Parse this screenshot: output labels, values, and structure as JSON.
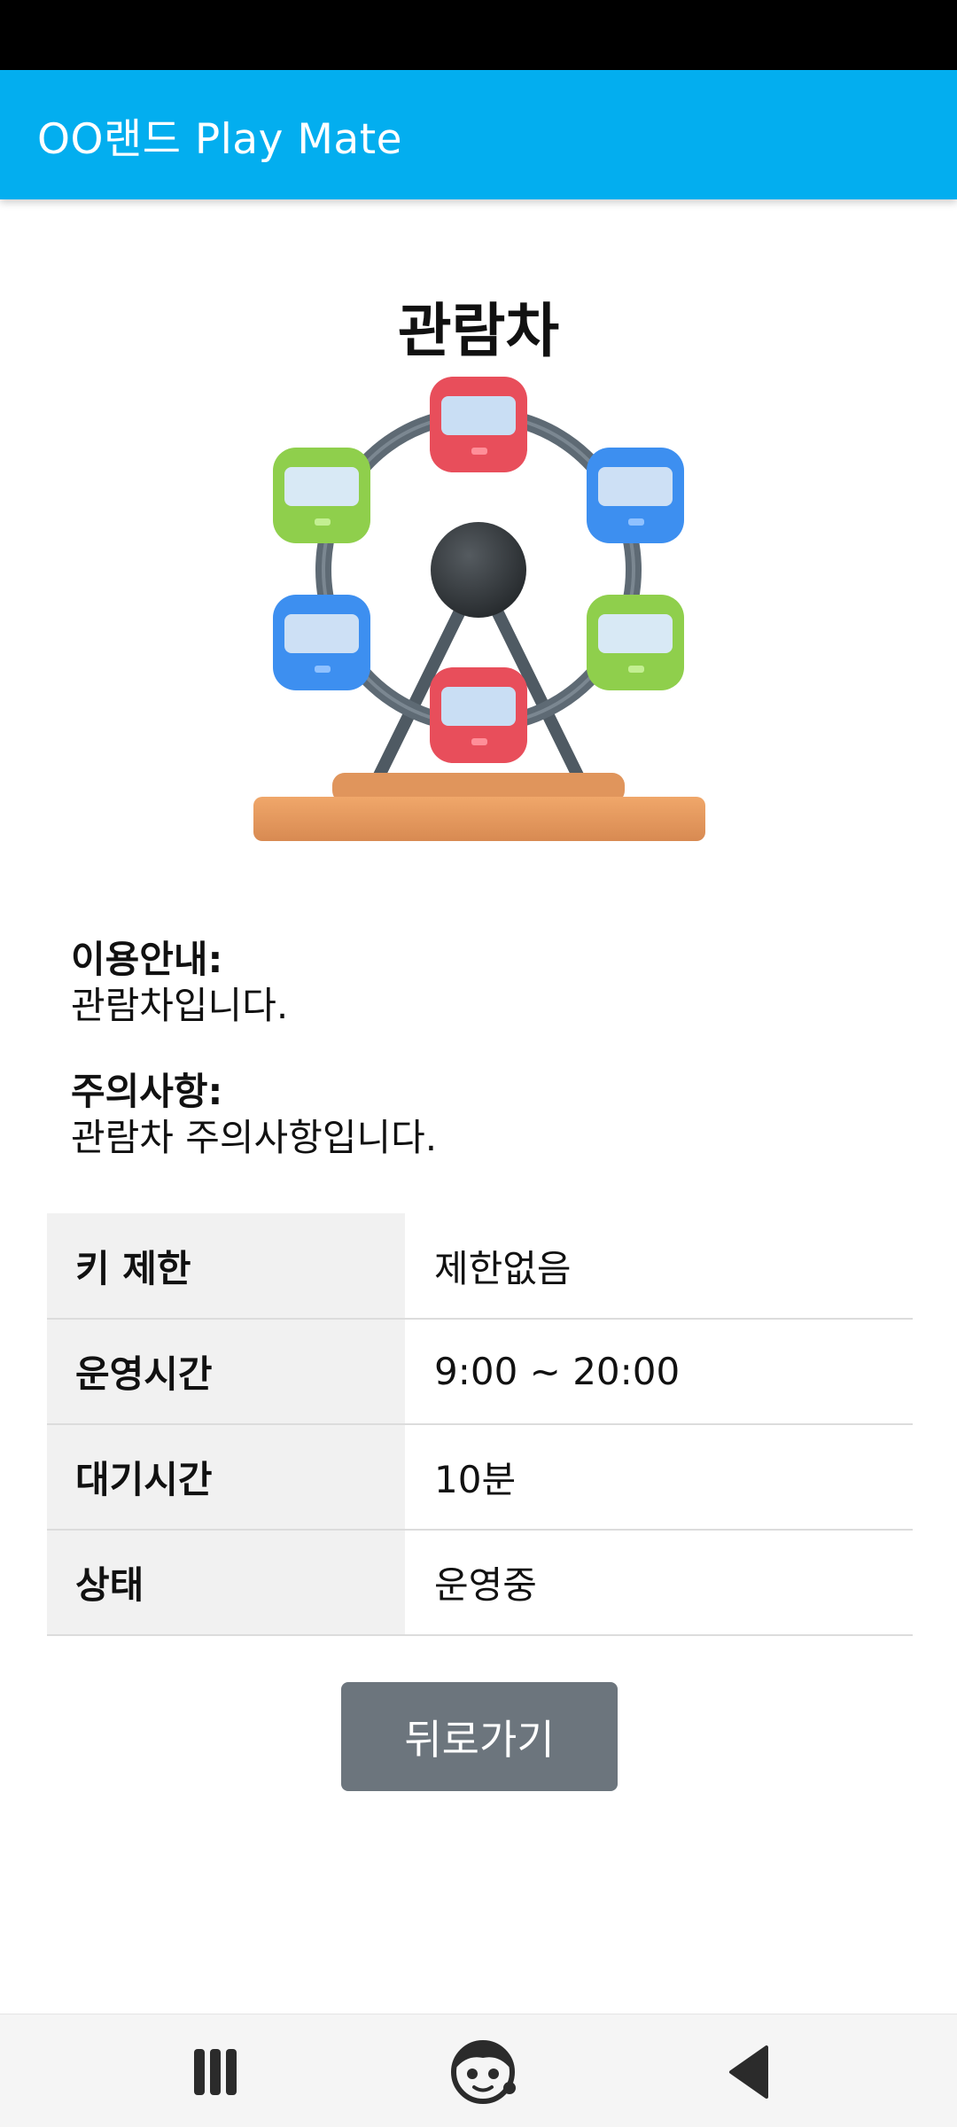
{
  "app_bar": {
    "title": "OO랜드 Play Mate"
  },
  "ride": {
    "name": "관람차",
    "image_icon": "ferris-wheel-illustration",
    "guide": {
      "label": "이용안내:",
      "text": "관람차입니다."
    },
    "caution": {
      "label": "주의사항:",
      "text": "관람차 주의사항입니다."
    }
  },
  "details": [
    {
      "key": "키 제한",
      "value": "제한없음"
    },
    {
      "key": "운영시간",
      "value": "9:00 ~ 20:00"
    },
    {
      "key": "대기시간",
      "value": "10분"
    },
    {
      "key": "상태",
      "value": "운영중"
    }
  ],
  "back_button": {
    "label": "뒤로가기"
  },
  "nav_bar": {
    "recents_icon": "recent-apps-icon",
    "home_icon": "home-avatar-icon",
    "back_icon": "back-triangle-icon"
  },
  "colors": {
    "app_bar": "#03aeef",
    "button": "#6c757d",
    "table_key_bg": "#f1f1f1"
  }
}
